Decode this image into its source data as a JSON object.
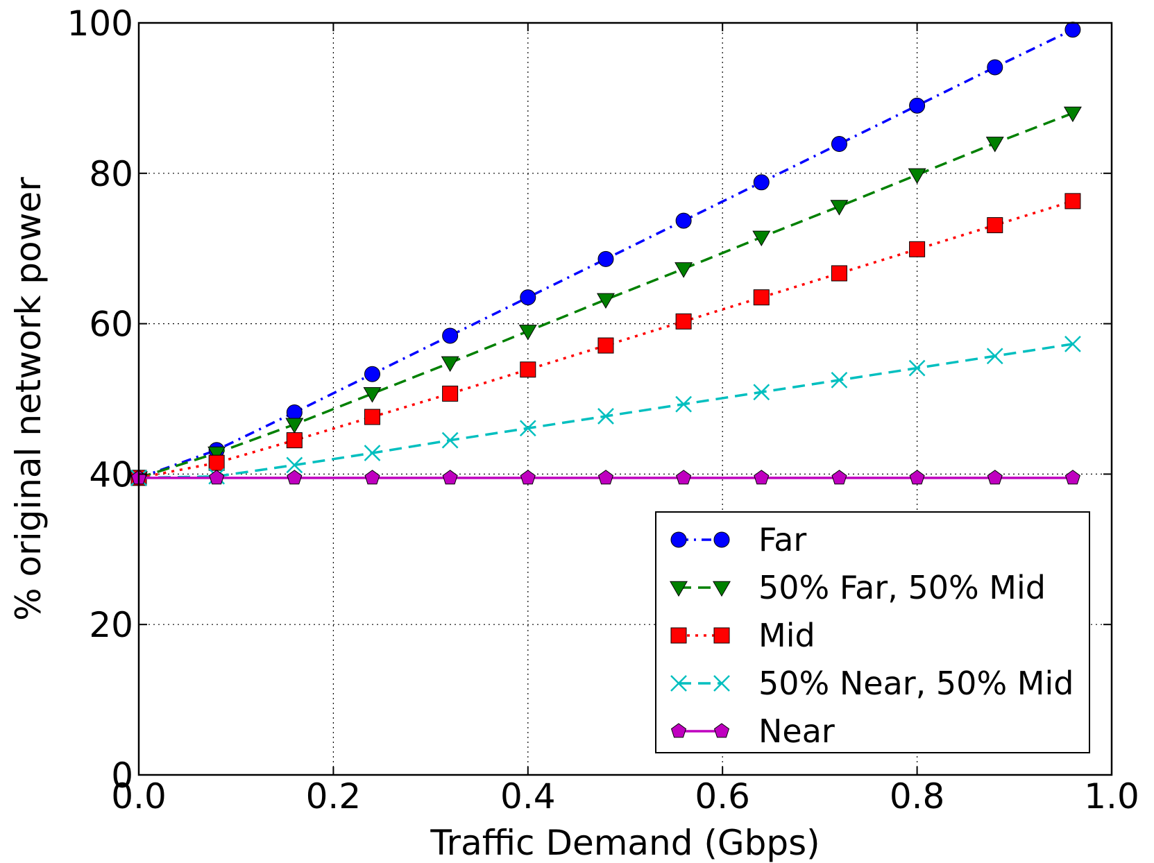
{
  "chart_data": {
    "type": "line",
    "xlabel": "Traffic Demand (Gbps)",
    "ylabel": "% original network power",
    "xlim": [
      0,
      1
    ],
    "ylim": [
      0,
      100
    ],
    "xticks": [
      "0.0",
      "0.2",
      "0.4",
      "0.6",
      "0.8",
      "1.0"
    ],
    "yticks": [
      "0",
      "20",
      "40",
      "60",
      "80",
      "100"
    ],
    "grid": true,
    "legend_position": "lower-right",
    "x": [
      0,
      0.08,
      0.16,
      0.24,
      0.32,
      0.4,
      0.48,
      0.56,
      0.64,
      0.72,
      0.8,
      0.88,
      0.96
    ],
    "series": [
      {
        "name": "Far",
        "color": "#0000ff",
        "marker": "circle",
        "linestyle": "dashdot",
        "values": [
          39.5,
          43.2,
          48.2,
          53.3,
          58.4,
          63.5,
          68.6,
          73.7,
          78.8,
          83.9,
          89.0,
          94.1,
          99.1
        ]
      },
      {
        "name": "50% Far, 50% Mid",
        "color": "#008000",
        "marker": "triangle-down",
        "linestyle": "dashed",
        "values": [
          39.5,
          42.8,
          46.6,
          50.7,
          54.8,
          59.0,
          63.2,
          67.3,
          71.5,
          75.6,
          79.8,
          84.0,
          88.0
        ]
      },
      {
        "name": "Mid",
        "color": "#ff0000",
        "marker": "square",
        "linestyle": "dotted",
        "values": [
          39.5,
          41.5,
          44.5,
          47.6,
          50.7,
          53.9,
          57.1,
          60.3,
          63.5,
          66.7,
          69.9,
          73.1,
          76.3
        ]
      },
      {
        "name": "50% Near, 50% Mid",
        "color": "#00bfbf",
        "marker": "x",
        "linestyle": "dashed",
        "values": [
          39.5,
          39.7,
          41.2,
          42.8,
          44.5,
          46.1,
          47.7,
          49.3,
          50.9,
          52.5,
          54.1,
          55.7,
          57.3
        ]
      },
      {
        "name": "Near",
        "color": "#bf00bf",
        "marker": "pentagon",
        "linestyle": "solid",
        "values": [
          39.5,
          39.5,
          39.5,
          39.5,
          39.5,
          39.5,
          39.5,
          39.5,
          39.5,
          39.5,
          39.5,
          39.5,
          39.5
        ]
      }
    ]
  }
}
